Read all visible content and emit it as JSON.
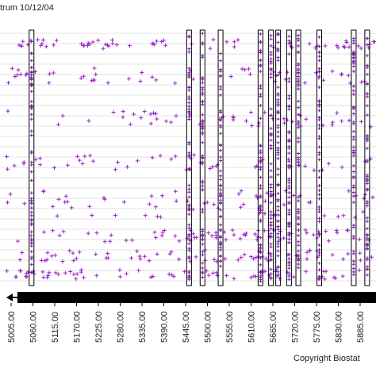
{
  "header": {
    "title": "trum 10/12/04"
  },
  "footer": {
    "copyright": "Copyright Biostat"
  },
  "colors": {
    "points": "#9b22c8",
    "column_fill": "#7a1fa8",
    "gridline": "#c8c8c8",
    "axis": "#000000"
  },
  "chart_data": {
    "type": "scatter",
    "title": "trum 10/12/04",
    "xlabel": "",
    "ylabel": "",
    "x_ticks": [
      "5005.00",
      "5060.00",
      "5115.00",
      "5170.00",
      "5225.00",
      "5280.00",
      "5335.00",
      "5390.00",
      "5445.00",
      "5500.00",
      "5555.00",
      "5610.00",
      "5665.00",
      "5720.00",
      "5775.00",
      "5830.00",
      "5885.00"
    ],
    "xlim": [
      5005,
      5885
    ],
    "grid": true,
    "highlighted_columns_x": [
      5065,
      5440,
      5472,
      5515,
      5610,
      5635,
      5652,
      5678,
      5700,
      5750,
      5832,
      5864
    ],
    "marker": "+",
    "series": [
      {
        "values_note": ""
      }
    ]
  }
}
